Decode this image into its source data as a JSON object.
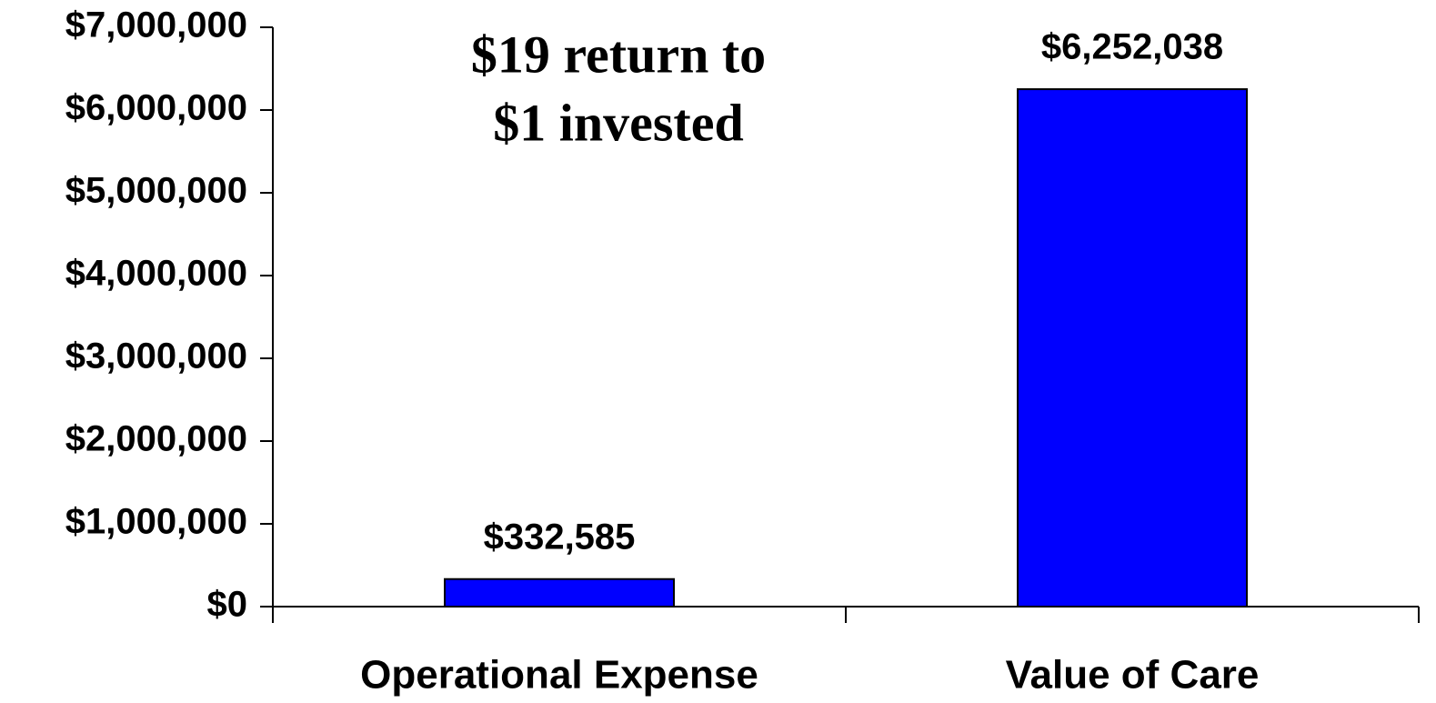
{
  "chart_data": {
    "type": "bar",
    "categories": [
      "Operational Expense",
      "Value of Care"
    ],
    "values": [
      332585,
      6252038
    ],
    "value_labels": [
      "$332,585",
      "$6,252,038"
    ],
    "color": "#0000ff",
    "annotation": [
      "$19 return to",
      "$1 invested"
    ],
    "ylim": [
      0,
      7000000
    ],
    "yticks": [
      {
        "value": 0,
        "label": "$0"
      },
      {
        "value": 1000000,
        "label": "$1,000,000"
      },
      {
        "value": 2000000,
        "label": "$2,000,000"
      },
      {
        "value": 3000000,
        "label": "$3,000,000"
      },
      {
        "value": 4000000,
        "label": "$4,000,000"
      },
      {
        "value": 5000000,
        "label": "$5,000,000"
      },
      {
        "value": 6000000,
        "label": "$6,000,000"
      },
      {
        "value": 7000000,
        "label": "$7,000,000"
      }
    ],
    "grid": false
  }
}
